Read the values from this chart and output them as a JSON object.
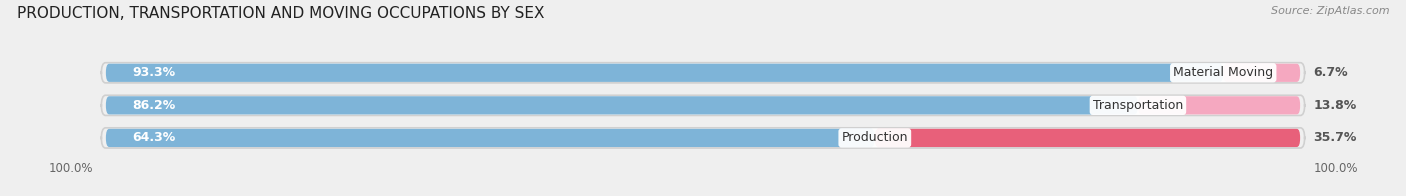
{
  "title": "PRODUCTION, TRANSPORTATION AND MOVING OCCUPATIONS BY SEX",
  "source": "Source: ZipAtlas.com",
  "categories": [
    "Material Moving",
    "Transportation",
    "Production"
  ],
  "male_values": [
    93.3,
    86.2,
    64.3
  ],
  "female_values": [
    6.7,
    13.8,
    35.7
  ],
  "male_color": "#7eb4d8",
  "female_color_light": "#f5a8c0",
  "female_color_dark": "#e8607a",
  "background_color": "#efefef",
  "bar_bg_color": "#e8e8e8",
  "bar_inner_bg": "#fafafa",
  "title_fontsize": 11,
  "label_fontsize": 9,
  "pct_fontsize": 9,
  "axis_label_fontsize": 8.5,
  "legend_fontsize": 9
}
